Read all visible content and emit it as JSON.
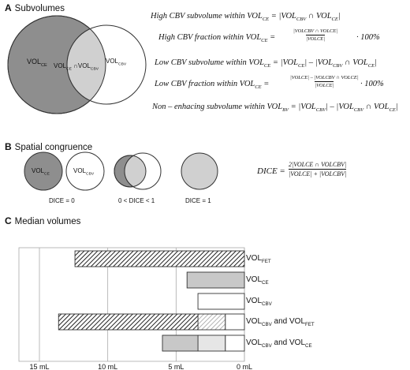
{
  "sections": {
    "a": {
      "letter": "A",
      "title": "Subvolumes"
    },
    "b": {
      "letter": "B",
      "title": "Spatial congruence"
    },
    "c": {
      "letter": "C",
      "title": "Median volumes"
    }
  },
  "venn": {
    "left": {
      "main": "VOL",
      "sub": "CE"
    },
    "center": {
      "main1": "VOL",
      "sub1": "CE",
      "op": "∩",
      "main2": "VOL",
      "sub2": "CBV"
    },
    "right": {
      "main": "VOL",
      "sub": "CBV"
    }
  },
  "formulas": {
    "f1": {
      "text": "High CBV subvolume within VOL",
      "sub": "CE",
      "rhs": "= |VOL",
      "rhs_sub1": "CBV",
      "rhs_mid": " ∩ VOL",
      "rhs_sub2": "CE",
      "rhs_end": "|"
    },
    "f2": {
      "text": "High CBV fraction within VOL",
      "sub": "CE",
      "eq": "=",
      "num": "|VOLCBV ∩ VOLCE|",
      "den": "|VOLCE|",
      "tail": "· 100%"
    },
    "f3": {
      "text": "Low CBV subvolume within VOL",
      "sub": "CE",
      "rhs": "= |VOL",
      "rhs_sub1": "CE",
      "rhs_mid": "| – |VOL",
      "rhs_sub2": "CBV",
      "rhs_mid2": " ∩ VOL",
      "rhs_sub3": "CE",
      "rhs_end": "|"
    },
    "f4": {
      "text": "Low CBV fraction within VOL",
      "sub": "CE",
      "eq": "=",
      "num": "|VOLCE| – |VOLCBV ∩ VOLCE|",
      "den": "|VOLCE|",
      "tail": "· 100%"
    },
    "f5": {
      "text": "Non – enhacing subvolume within VOL",
      "sub": "BV",
      "rhs": "= |VOL",
      "rhs_sub1": "CBV",
      "rhs_mid": "| – |VOL",
      "rhs_sub2": "CBV",
      "rhs_mid2": " ∩ VOL",
      "rhs_sub3": "CE",
      "rhs_end": "|"
    }
  },
  "congruence": {
    "c1_left": {
      "main": "VOL",
      "sub": "CE"
    },
    "c1_right": {
      "main": "VOL",
      "sub": "CBV"
    },
    "dice0": "DICE = 0",
    "dice_mid": "0 < DICE < 1",
    "dice1": "DICE = 1",
    "dice_formula": {
      "lhs": "DICE =",
      "num": "2|VOLCE ∩ VOLCBV|",
      "den": "|VOLCE| + |VOLCBV|"
    }
  },
  "chart_data": {
    "type": "bar",
    "orientation": "horizontal",
    "xlim": [
      16.5,
      0
    ],
    "x_ticks": [
      15,
      10,
      5,
      0
    ],
    "x_tick_labels": [
      "15 mL",
      "10 mL",
      "5 mL",
      "0 mL"
    ],
    "rows": [
      {
        "label_main": "VOL",
        "label_sub": "FET",
        "label_suffix": "",
        "label_main2": "",
        "label_sub2": "",
        "segments": [
          {
            "from": 0,
            "to": 12.4,
            "fill": "hatch"
          }
        ]
      },
      {
        "label_main": "VOL",
        "label_sub": "CE",
        "label_suffix": "",
        "label_main2": "",
        "label_sub2": "",
        "segments": [
          {
            "from": 0,
            "to": 4.2,
            "fill": "gray"
          }
        ]
      },
      {
        "label_main": "VOL",
        "label_sub": "CBV",
        "label_suffix": "",
        "label_main2": "",
        "label_sub2": "",
        "segments": [
          {
            "from": 0,
            "to": 3.4,
            "fill": "white"
          }
        ]
      },
      {
        "label_main": "VOL",
        "label_sub": "CBV",
        "label_suffix": " and ",
        "label_main2": "VOL",
        "label_sub2": "FET",
        "segments": [
          {
            "from": 0,
            "to": 1.4,
            "fill": "white"
          },
          {
            "from": 1.4,
            "to": 3.4,
            "fill": "lighthatch"
          },
          {
            "from": 3.4,
            "to": 13.6,
            "fill": "hatch"
          }
        ]
      },
      {
        "label_main": "VOL",
        "label_sub": "CBV",
        "label_suffix": " and ",
        "label_main2": "VOL",
        "label_sub2": "CE",
        "segments": [
          {
            "from": 0,
            "to": 1.4,
            "fill": "white"
          },
          {
            "from": 1.4,
            "to": 3.4,
            "fill": "lightgray"
          },
          {
            "from": 3.4,
            "to": 6.0,
            "fill": "gray"
          }
        ]
      }
    ]
  }
}
